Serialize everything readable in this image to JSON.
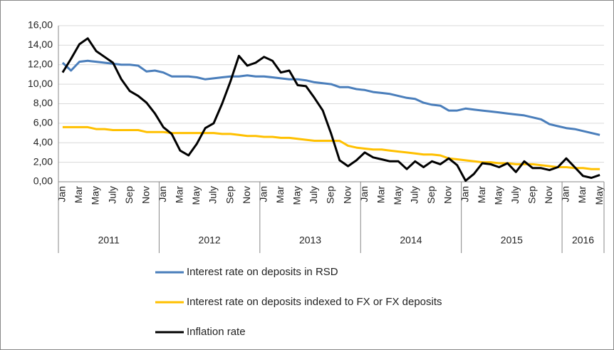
{
  "chart_data": {
    "type": "line",
    "categories": [
      "Jan",
      null,
      "Mar",
      null,
      "May",
      null,
      "July",
      null,
      "Sep",
      null,
      "Nov",
      null,
      "Jan",
      null,
      "Mar",
      null,
      "May",
      null,
      "July",
      null,
      "Sep",
      null,
      "Nov",
      null,
      "Jan",
      null,
      "Mar",
      null,
      "May",
      null,
      "July",
      null,
      "Sep",
      null,
      "Nov",
      null,
      "Jan",
      null,
      "Mar",
      null,
      "May",
      null,
      "July",
      null,
      "Sep",
      null,
      "Nov",
      null,
      "Jan",
      null,
      "Mar",
      null,
      "May",
      null,
      "July",
      null,
      "Sep",
      null,
      "Nov",
      null,
      "Jan",
      null,
      "Mar",
      null,
      "May"
    ],
    "years": [
      "2011",
      "2012",
      "2013",
      "2014",
      "2015",
      "2016"
    ],
    "ylim": [
      0,
      16
    ],
    "yticks": [
      {
        "value": 0,
        "label": "0,00"
      },
      {
        "value": 2,
        "label": "2,00"
      },
      {
        "value": 4,
        "label": "4,00"
      },
      {
        "value": 6,
        "label": "6,00"
      },
      {
        "value": 8,
        "label": "8,00"
      },
      {
        "value": 10,
        "label": "10,00"
      },
      {
        "value": 12,
        "label": "12,00"
      },
      {
        "value": 14,
        "label": "14,00"
      },
      {
        "value": 16,
        "label": "16,00"
      }
    ],
    "grid": true,
    "series": [
      {
        "name": "Interest rate on deposits in RSD",
        "color": "#4a7ebb",
        "values": [
          12.2,
          11.4,
          12.3,
          12.4,
          12.3,
          12.2,
          12.1,
          12.0,
          12.0,
          11.9,
          11.3,
          11.4,
          11.2,
          10.8,
          10.8,
          10.8,
          10.7,
          10.5,
          10.6,
          10.7,
          10.8,
          10.8,
          10.9,
          10.8,
          10.8,
          10.7,
          10.6,
          10.5,
          10.5,
          10.4,
          10.2,
          10.1,
          10.0,
          9.7,
          9.7,
          9.5,
          9.4,
          9.2,
          9.1,
          9.0,
          8.8,
          8.6,
          8.5,
          8.1,
          7.9,
          7.8,
          7.3,
          7.3,
          7.5,
          7.4,
          7.3,
          7.2,
          7.1,
          7.0,
          6.9,
          6.8,
          6.6,
          6.4,
          5.9,
          5.7,
          5.5,
          5.4,
          5.2,
          5.0,
          4.8
        ]
      },
      {
        "name": "Interest rate on deposits indexed to FX or FX deposits",
        "color": "#ffc000",
        "values": [
          5.6,
          5.6,
          5.6,
          5.6,
          5.4,
          5.4,
          5.3,
          5.3,
          5.3,
          5.3,
          5.1,
          5.1,
          5.1,
          5.0,
          5.0,
          5.0,
          5.0,
          5.0,
          5.0,
          4.9,
          4.9,
          4.8,
          4.7,
          4.7,
          4.6,
          4.6,
          4.5,
          4.5,
          4.4,
          4.3,
          4.2,
          4.2,
          4.2,
          4.2,
          3.7,
          3.5,
          3.4,
          3.3,
          3.3,
          3.2,
          3.1,
          3.0,
          2.9,
          2.8,
          2.8,
          2.7,
          2.4,
          2.3,
          2.2,
          2.1,
          2.0,
          2.0,
          1.9,
          1.9,
          1.8,
          1.8,
          1.8,
          1.7,
          1.6,
          1.5,
          1.5,
          1.4,
          1.4,
          1.3,
          1.3
        ]
      },
      {
        "name": "Inflation rate",
        "color": "#000000",
        "values": [
          11.2,
          12.6,
          14.1,
          14.7,
          13.4,
          12.8,
          12.2,
          10.5,
          9.3,
          8.8,
          8.1,
          7.0,
          5.6,
          4.9,
          3.2,
          2.7,
          3.9,
          5.5,
          6.0,
          8.0,
          10.3,
          12.9,
          11.9,
          12.2,
          12.8,
          12.4,
          11.2,
          11.4,
          9.9,
          9.8,
          8.6,
          7.3,
          4.9,
          2.2,
          1.6,
          2.2,
          3.0,
          2.5,
          2.3,
          2.1,
          2.1,
          1.3,
          2.1,
          1.5,
          2.1,
          1.8,
          2.4,
          1.7,
          0.1,
          0.8,
          1.9,
          1.8,
          1.5,
          1.9,
          1.0,
          2.1,
          1.4,
          1.4,
          1.2,
          1.5,
          2.4,
          1.5,
          0.6,
          0.4,
          0.7
        ]
      }
    ]
  }
}
